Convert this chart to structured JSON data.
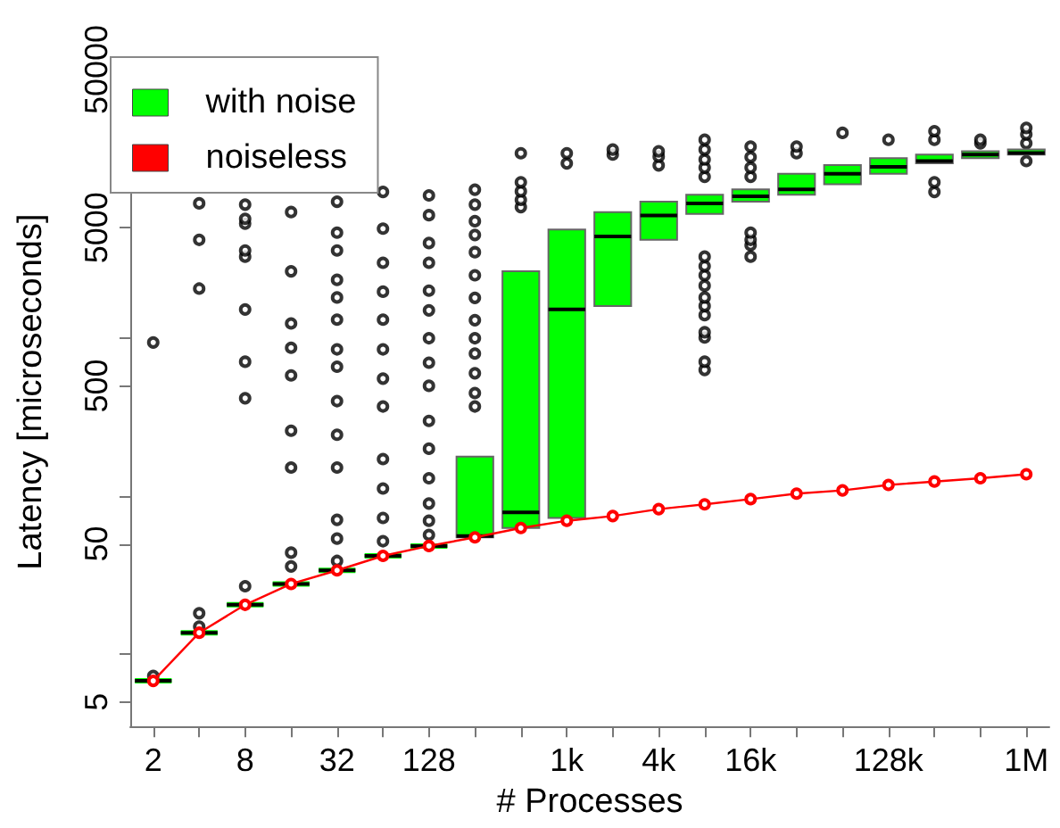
{
  "chart_data": {
    "type": "box",
    "xlabel": "# Processes",
    "ylabel": "Latency [microseconds]",
    "categories": [
      "2",
      null,
      "8",
      null,
      "32",
      null,
      "128",
      null,
      null,
      "1k",
      null,
      "4k",
      null,
      "16k",
      null,
      null,
      "128k",
      null,
      null,
      "1M"
    ],
    "log": "y",
    "ylim": [
      3.5,
      60000
    ],
    "yticks": [
      5,
      {
        "value": 10,
        "label": null
      },
      50,
      {
        "value": 100,
        "label": null
      },
      500,
      {
        "value": 1000,
        "label": null
      },
      5000,
      {
        "value": 10000,
        "label": null
      },
      50000
    ],
    "grid": false,
    "legend": "top left",
    "series": [
      {
        "name": "with noise",
        "color": "#00ff00",
        "boxes": [
          {
            "low": 6.8,
            "q1": 6.8,
            "median": 6.8,
            "q3": 6.8,
            "high": 6.8,
            "outliers": [
              7.3,
              940
            ]
          },
          {
            "low": 13.7,
            "q1": 13.7,
            "median": 13.7,
            "q3": 13.7,
            "high": 13.7,
            "outliers": [
              15,
              18.2,
              2060,
              4190,
              7130
            ]
          },
          {
            "low": 20.6,
            "q1": 20.6,
            "median": 20.6,
            "q3": 20.6,
            "high": 20.6,
            "outliers": [
              27,
              417,
              710,
              1520,
              3280,
              3590,
              5300,
              5690,
              7000
            ]
          },
          {
            "low": 27.9,
            "q1": 27.9,
            "median": 27.9,
            "q3": 27.9,
            "high": 27.9,
            "outliers": [
              36,
              44,
              152,
              260,
              582,
              870,
              1240,
              2650,
              6280
            ]
          },
          {
            "low": 34,
            "q1": 34,
            "median": 34,
            "q3": 34,
            "high": 34,
            "outliers": [
              39,
              54,
              71,
              152,
              245,
              400,
              660,
              850,
              1310,
              1810,
              2340,
              3590,
              4650,
              7300
            ]
          },
          {
            "low": 42,
            "q1": 42,
            "median": 42,
            "q3": 42,
            "high": 42,
            "outliers": [
              52,
              73,
              112,
              172,
              370,
              555,
              850,
              1310,
              1970,
              3000,
              4930,
              8420
            ]
          },
          {
            "low": 48.5,
            "q1": 48.5,
            "median": 48.5,
            "q3": 48.5,
            "high": 48.5,
            "outliers": [
              57,
              70,
              90,
              130,
              200,
              300,
              500,
              700,
              1000,
              1500,
              2000,
              3000,
              4000,
              6000,
              8000
            ]
          },
          {
            "low": 55,
            "q1": 55,
            "median": 56,
            "q3": 178,
            "high": 178,
            "outliers": [
              370,
              450,
              600,
              800,
              1000,
              1300,
              1800,
              2500,
              3500,
              4500,
              5500,
              7000,
              8700
            ]
          },
          {
            "low": 63,
            "q1": 63,
            "median": 79,
            "q3": 2650,
            "high": 2650,
            "outliers": [
              6750,
              7500,
              8500,
              9700,
              14800
            ]
          },
          {
            "low": 73,
            "q1": 73,
            "median": 1520,
            "q3": 4870,
            "high": 4870,
            "outliers": [
              12760,
              14800
            ]
          },
          {
            "low": 1600,
            "q1": 1600,
            "median": 4400,
            "q3": 6280,
            "high": 6280,
            "outliers": [
              14500,
              15600
            ]
          },
          {
            "low": 4190,
            "q1": 4190,
            "median": 5970,
            "q3": 7300,
            "high": 7300,
            "outliers": [
              12400,
              14100,
              15200
            ]
          },
          {
            "low": 6120,
            "q1": 6120,
            "median": 7120,
            "q3": 8090,
            "high": 8090,
            "outliers": [
              630,
              710,
              1010,
              1090,
              1400,
              1600,
              1810,
              2150,
              2500,
              2860,
              3280,
              10500,
              12000,
              13500,
              15600,
              18000
            ]
          },
          {
            "low": 7300,
            "q1": 7300,
            "median": 7890,
            "q3": 8730,
            "high": 8730,
            "outliers": [
              3280,
              3880,
              4190,
              4650,
              10500,
              12000,
              14000,
              16300
            ]
          },
          {
            "low": 8090,
            "q1": 8090,
            "median": 8730,
            "q3": 10960,
            "high": 10960,
            "outliers": [
              14800,
              16300
            ]
          },
          {
            "low": 9420,
            "q1": 9420,
            "median": 10960,
            "q3": 12440,
            "high": 12440,
            "outliers": [
              19900
            ]
          },
          {
            "low": 10960,
            "q1": 10960,
            "median": 12130,
            "q3": 13770,
            "high": 13770,
            "outliers": [
              18000
            ]
          },
          {
            "low": 12760,
            "q1": 12760,
            "median": 13200,
            "q3": 14490,
            "high": 14490,
            "outliers": [
              8420,
              9700,
              18000,
              20400
            ]
          },
          {
            "low": 13770,
            "q1": 13770,
            "median": 14490,
            "q3": 15240,
            "high": 15240,
            "outliers": [
              17100,
              18000
            ]
          },
          {
            "low": 14490,
            "q1": 14490,
            "median": 14860,
            "q3": 15630,
            "high": 15630,
            "outliers": [
              13200,
              17100,
              19500,
              21400
            ]
          }
        ]
      },
      {
        "name": "noiseless",
        "type": "line",
        "color": "#ff0000",
        "marker": "circle",
        "line_style": "solid",
        "values": [
          6.8,
          13.7,
          20.6,
          27.9,
          34,
          42,
          48.5,
          55,
          63,
          70,
          75,
          83,
          89,
          96,
          104,
          109,
          118,
          124,
          130,
          138
        ]
      }
    ]
  }
}
